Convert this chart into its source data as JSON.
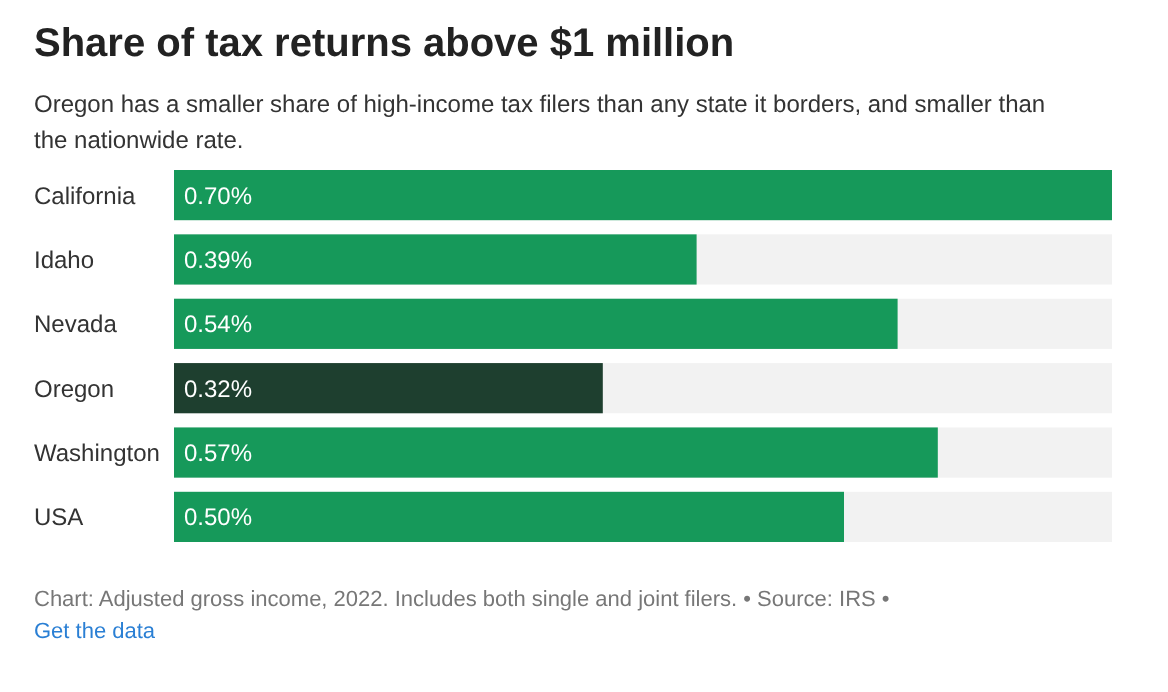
{
  "chart_data": {
    "type": "bar",
    "orientation": "horizontal",
    "title": "Share of tax returns above $1 million",
    "subtitle": "Oregon has a smaller share of high-income tax filers than any state it borders, and smaller than the nationwide rate.",
    "categories": [
      "California",
      "Idaho",
      "Nevada",
      "Oregon",
      "Washington",
      "USA"
    ],
    "values": [
      0.7,
      0.39,
      0.54,
      0.32,
      0.57,
      0.5
    ],
    "value_labels": [
      "0.70%",
      "0.39%",
      "0.54%",
      "0.32%",
      "0.57%",
      "0.50%"
    ],
    "colors": [
      "#16995a",
      "#16995a",
      "#16995a",
      "#1e3f2f",
      "#16995a",
      "#16995a"
    ],
    "annotations": [
      "Chart: Adjusted gross income, 2022. Includes both single and joint filers. • Source: IRS •",
      "Get the data"
    ]
  }
}
